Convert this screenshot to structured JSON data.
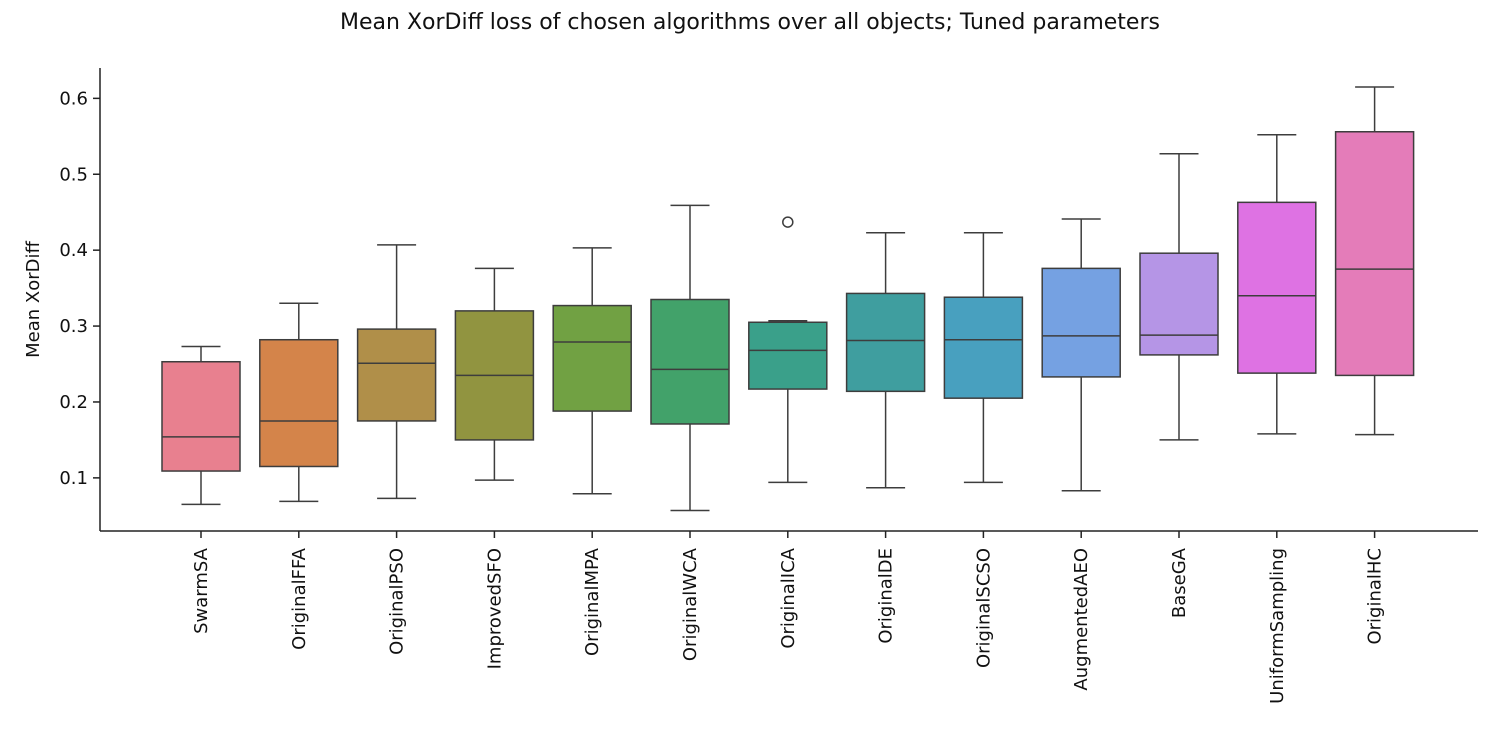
{
  "chart_data": {
    "type": "box",
    "title": "Mean XorDiff loss of chosen algorithms over all objects; Tuned parameters",
    "xlabel": "",
    "ylabel": "Mean XorDiff",
    "ylim": [
      0.03,
      0.64
    ],
    "yticks": [
      0.1,
      0.2,
      0.3,
      0.4,
      0.5,
      0.6
    ],
    "ytick_labels": [
      "0.1",
      "0.2",
      "0.3",
      "0.4",
      "0.5",
      "0.6"
    ],
    "grid": false,
    "legend": "none",
    "categories": [
      "SwarmSA",
      "OriginalFFA",
      "OriginalPSO",
      "ImprovedSFO",
      "OriginalMPA",
      "OriginalWCA",
      "OriginalICA",
      "OriginalDE",
      "OriginalSCSO",
      "AugmentedAEO",
      "BaseGA",
      "UniformSampling",
      "OriginalHC"
    ],
    "series": [
      {
        "category": "SwarmSA",
        "whisker_low": 0.065,
        "q1": 0.109,
        "median": 0.154,
        "q3": 0.253,
        "whisker_high": 0.273,
        "outliers": [],
        "color": "#e8808f"
      },
      {
        "category": "OriginalFFA",
        "whisker_low": 0.069,
        "q1": 0.115,
        "median": 0.175,
        "q3": 0.282,
        "whisker_high": 0.33,
        "outliers": [],
        "color": "#d4844a"
      },
      {
        "category": "OriginalPSO",
        "whisker_low": 0.073,
        "q1": 0.175,
        "median": 0.251,
        "q3": 0.296,
        "whisker_high": 0.407,
        "outliers": [],
        "color": "#b08f49"
      },
      {
        "category": "ImprovedSFO",
        "whisker_low": 0.097,
        "q1": 0.15,
        "median": 0.235,
        "q3": 0.32,
        "whisker_high": 0.376,
        "outliers": [],
        "color": "#919440"
      },
      {
        "category": "OriginalMPA",
        "whisker_low": 0.079,
        "q1": 0.188,
        "median": 0.279,
        "q3": 0.327,
        "whisker_high": 0.403,
        "outliers": [],
        "color": "#71a143"
      },
      {
        "category": "OriginalWCA",
        "whisker_low": 0.057,
        "q1": 0.171,
        "median": 0.243,
        "q3": 0.335,
        "whisker_high": 0.459,
        "outliers": [],
        "color": "#42a26a"
      },
      {
        "category": "OriginalICA",
        "whisker_low": 0.094,
        "q1": 0.217,
        "median": 0.268,
        "q3": 0.305,
        "whisker_high": 0.307,
        "outliers": [
          0.437
        ],
        "color": "#3aa08a"
      },
      {
        "category": "OriginalDE",
        "whisker_low": 0.087,
        "q1": 0.214,
        "median": 0.281,
        "q3": 0.343,
        "whisker_high": 0.423,
        "outliers": [],
        "color": "#3f9e9f"
      },
      {
        "category": "OriginalSCSO",
        "whisker_low": 0.094,
        "q1": 0.205,
        "median": 0.282,
        "q3": 0.338,
        "whisker_high": 0.423,
        "outliers": [],
        "color": "#48a0bf"
      },
      {
        "category": "AugmentedAEO",
        "whisker_low": 0.083,
        "q1": 0.233,
        "median": 0.287,
        "q3": 0.376,
        "whisker_high": 0.441,
        "outliers": [],
        "color": "#75a1e2"
      },
      {
        "category": "BaseGA",
        "whisker_low": 0.15,
        "q1": 0.262,
        "median": 0.288,
        "q3": 0.396,
        "whisker_high": 0.527,
        "outliers": [],
        "color": "#b595e6"
      },
      {
        "category": "UniformSampling",
        "whisker_low": 0.158,
        "q1": 0.238,
        "median": 0.34,
        "q3": 0.463,
        "whisker_high": 0.552,
        "outliers": [],
        "color": "#de72e3"
      },
      {
        "category": "OriginalHC",
        "whisker_low": 0.157,
        "q1": 0.235,
        "median": 0.375,
        "q3": 0.556,
        "whisker_high": 0.615,
        "outliers": [],
        "color": "#e47cb9"
      }
    ]
  }
}
